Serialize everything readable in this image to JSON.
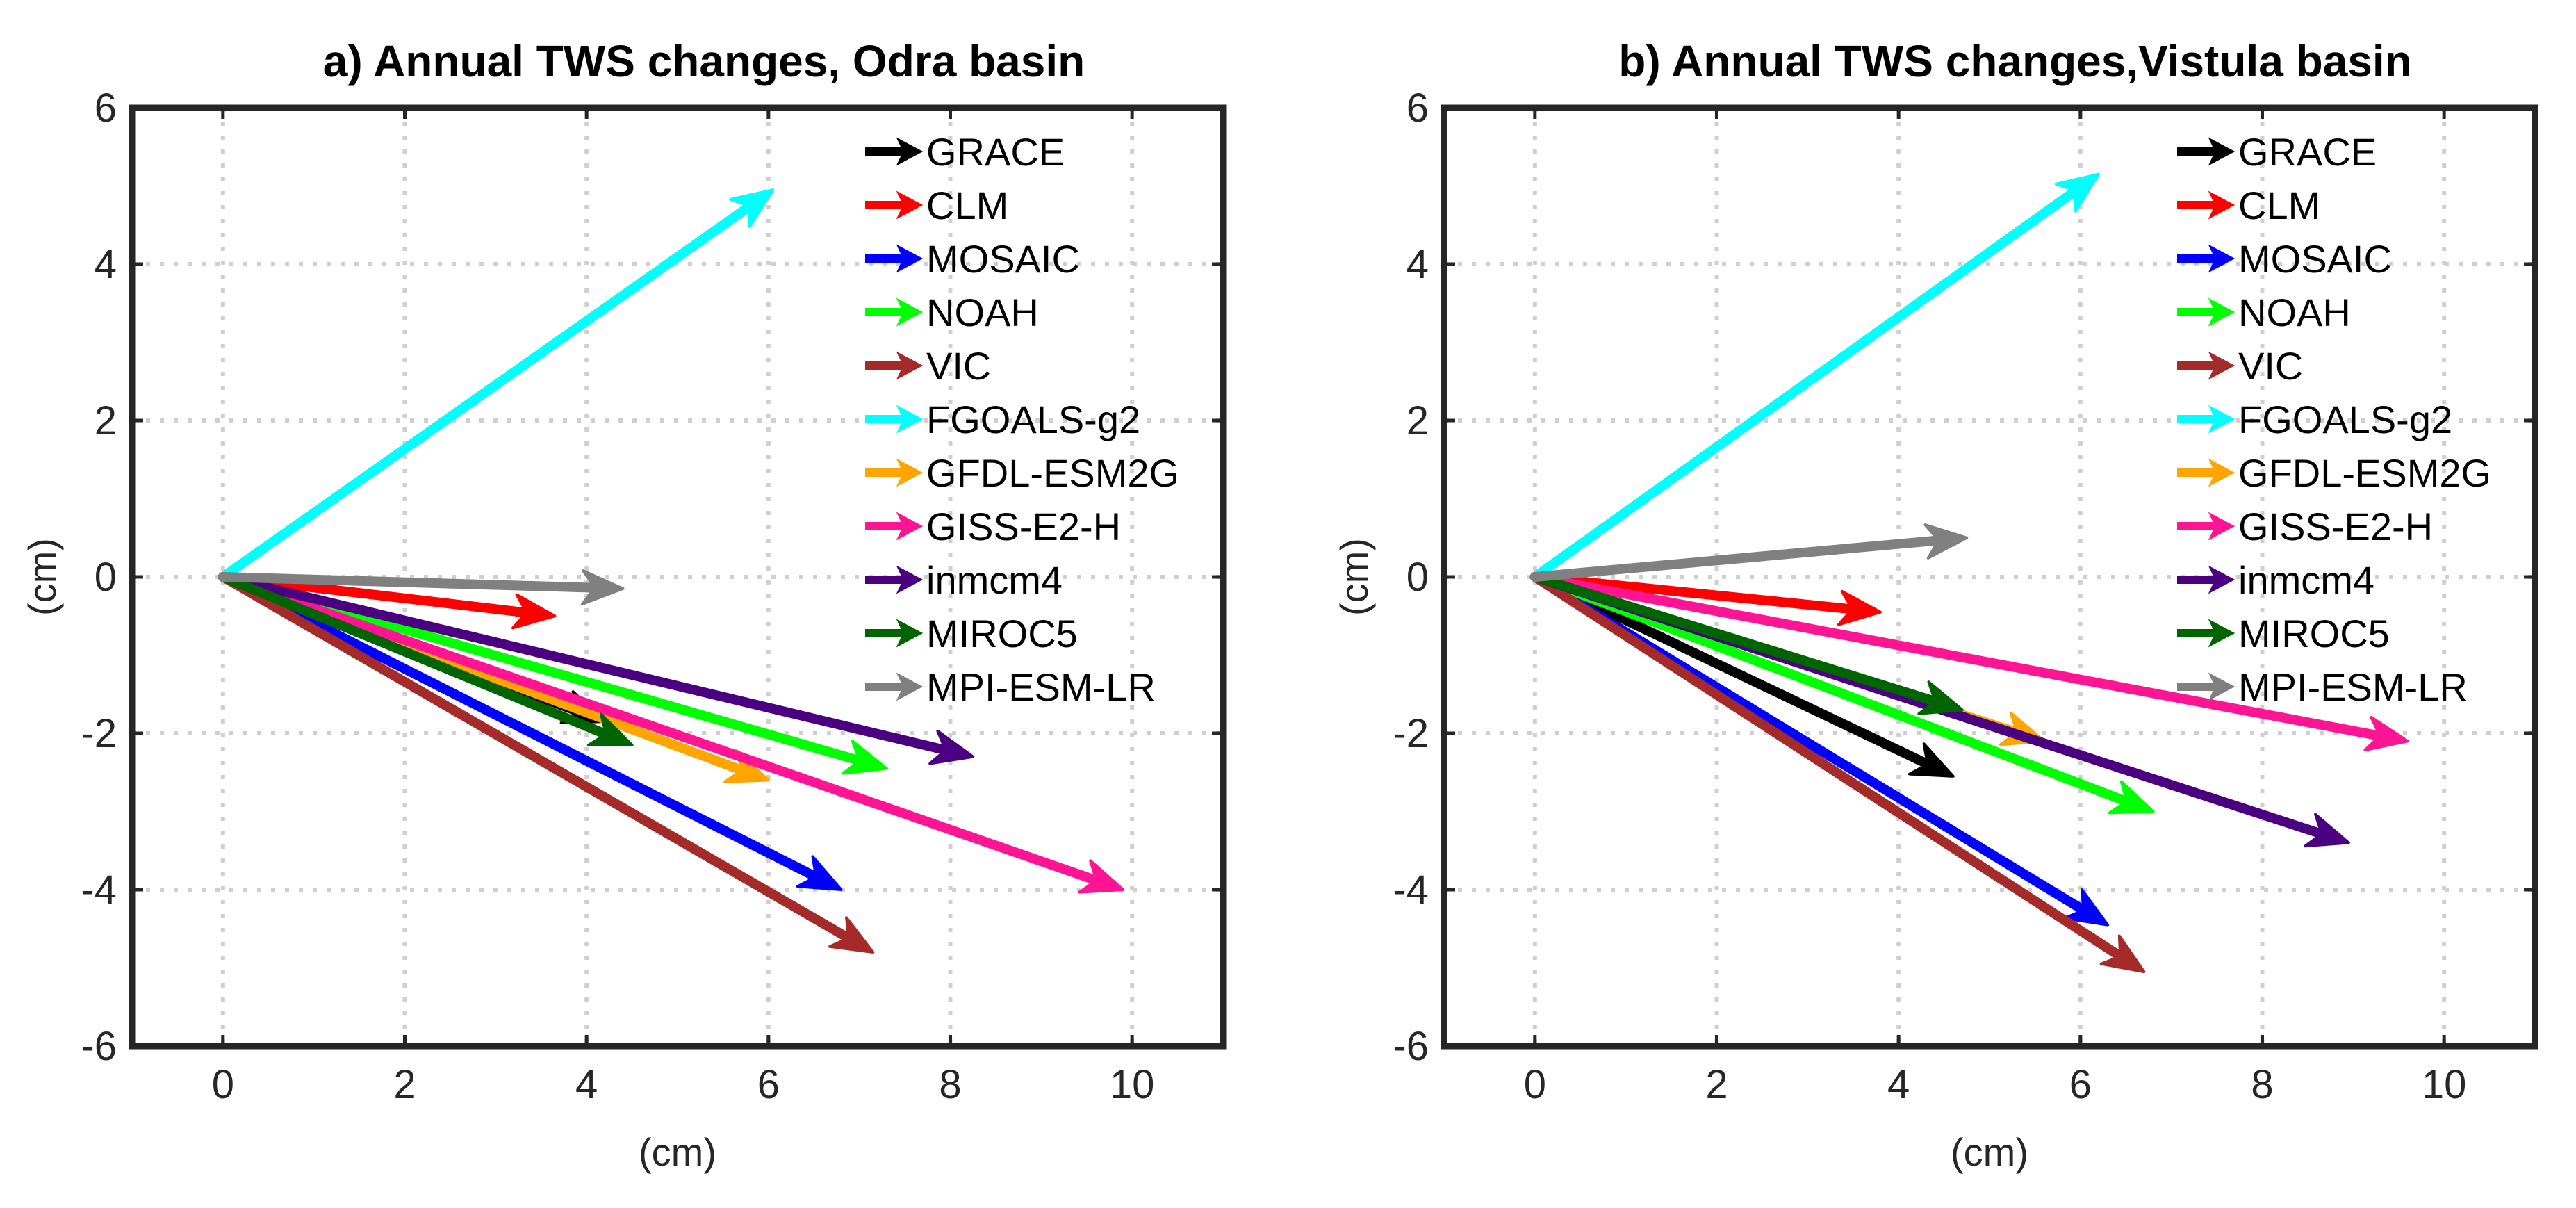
{
  "figure": {
    "xlabel": "(cm)",
    "ylabel": "(cm)",
    "xticks": [
      0,
      2,
      4,
      6,
      8,
      10
    ],
    "yticks": [
      -6,
      -4,
      -2,
      0,
      2,
      4,
      6
    ],
    "xlim": [
      -1,
      11
    ],
    "ylim": [
      -6,
      6
    ],
    "grid": true,
    "legend_position": "top-right",
    "colors": {
      "GRACE": "#000000",
      "CLM": "#ff0000",
      "MOSAIC": "#0000ff",
      "NOAH": "#00ff00",
      "VIC": "#a52a2a",
      "FGOALS-g2": "#00ffff",
      "GFDL-ESM2G": "#ffa500",
      "GISS-E2-H": "#ff1493",
      "inmcm4": "#4b0082",
      "MIROC5": "#006400",
      "MPI-ESM-LR": "#808080"
    }
  },
  "chart_data": [
    {
      "type": "quiver",
      "title": "a) Annual TWS changes, Odra basin",
      "xlabel": "(cm)",
      "ylabel": "(cm)",
      "xlim": [
        -1,
        11
      ],
      "ylim": [
        -6,
        6
      ],
      "origin": [
        0,
        0
      ],
      "series": [
        {
          "name": "GRACE",
          "x": 4.2,
          "y": -1.85
        },
        {
          "name": "CLM",
          "x": 3.65,
          "y": -0.5
        },
        {
          "name": "MOSAIC",
          "x": 6.8,
          "y": -4.0
        },
        {
          "name": "NOAH",
          "x": 7.3,
          "y": -2.45
        },
        {
          "name": "VIC",
          "x": 7.15,
          "y": -4.8
        },
        {
          "name": "FGOALS-g2",
          "x": 6.05,
          "y": 4.95
        },
        {
          "name": "GFDL-ESM2G",
          "x": 6.0,
          "y": -2.6
        },
        {
          "name": "GISS-E2-H",
          "x": 9.9,
          "y": -4.0
        },
        {
          "name": "inmcm4",
          "x": 8.25,
          "y": -2.3
        },
        {
          "name": "MIROC5",
          "x": 4.5,
          "y": -2.15
        },
        {
          "name": "MPI-ESM-LR",
          "x": 4.4,
          "y": -0.15
        }
      ]
    },
    {
      "type": "quiver",
      "title": "b) Annual TWS changes,Vistula basin",
      "xlabel": "(cm)",
      "ylabel": "(cm)",
      "xlim": [
        -1,
        11
      ],
      "ylim": [
        -6,
        6
      ],
      "origin": [
        0,
        0
      ],
      "series": [
        {
          "name": "GRACE",
          "x": 4.6,
          "y": -2.55
        },
        {
          "name": "CLM",
          "x": 3.8,
          "y": -0.45
        },
        {
          "name": "MOSAIC",
          "x": 6.3,
          "y": -4.45
        },
        {
          "name": "NOAH",
          "x": 6.8,
          "y": -3.0
        },
        {
          "name": "VIC",
          "x": 6.7,
          "y": -5.05
        },
        {
          "name": "FGOALS-g2",
          "x": 6.2,
          "y": 5.15
        },
        {
          "name": "GFDL-ESM2G",
          "x": 5.6,
          "y": -2.1
        },
        {
          "name": "GISS-E2-H",
          "x": 9.6,
          "y": -2.1
        },
        {
          "name": "inmcm4",
          "x": 8.95,
          "y": -3.4
        },
        {
          "name": "MIROC5",
          "x": 4.7,
          "y": -1.7
        },
        {
          "name": "MPI-ESM-LR",
          "x": 4.75,
          "y": 0.5
        }
      ]
    }
  ]
}
